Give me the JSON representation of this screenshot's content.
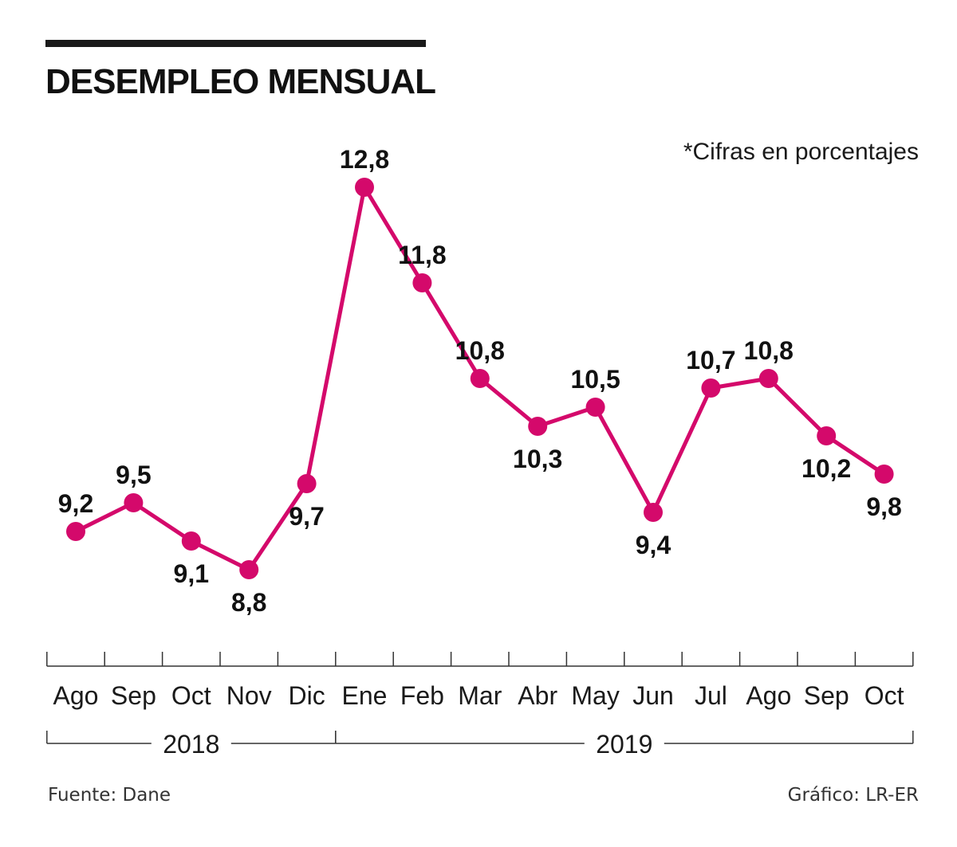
{
  "header": {
    "title": "DESEMPLEO MENSUAL",
    "note": "*Cifras en porcentajes"
  },
  "footer": {
    "source": "Fuente: Dane",
    "credit": "Gráfico: LR-ER"
  },
  "colors": {
    "series": "#d4096b",
    "text": "#111111",
    "axis": "#333333"
  },
  "chart_data": {
    "type": "line",
    "title": "DESEMPLEO MENSUAL",
    "xlabel": "",
    "ylabel": "",
    "unit": "%",
    "categories": [
      "Ago",
      "Sep",
      "Oct",
      "Nov",
      "Dic",
      "Ene",
      "Feb",
      "Mar",
      "Abr",
      "May",
      "Jun",
      "Jul",
      "Ago",
      "Sep",
      "Oct"
    ],
    "values": [
      9.2,
      9.5,
      9.1,
      8.8,
      9.7,
      12.8,
      11.8,
      10.8,
      10.3,
      10.5,
      9.4,
      10.7,
      10.8,
      10.2,
      9.8
    ],
    "value_labels": [
      "9,2",
      "9,5",
      "9,1",
      "8,8",
      "9,7",
      "12,8",
      "11,8",
      "10,8",
      "10,3",
      "10,5",
      "9,4",
      "10,7",
      "10,8",
      "10,2",
      "9,8"
    ],
    "label_positions": [
      "above",
      "above",
      "below",
      "below",
      "below",
      "above",
      "above",
      "above",
      "below",
      "above",
      "below",
      "above",
      "above",
      "below",
      "below"
    ],
    "years": [
      {
        "label": "2018",
        "from": 0,
        "to": 4
      },
      {
        "label": "2019",
        "from": 5,
        "to": 14
      }
    ],
    "ylim": [
      8.8,
      12.8
    ],
    "grid": false,
    "legend": "none"
  }
}
